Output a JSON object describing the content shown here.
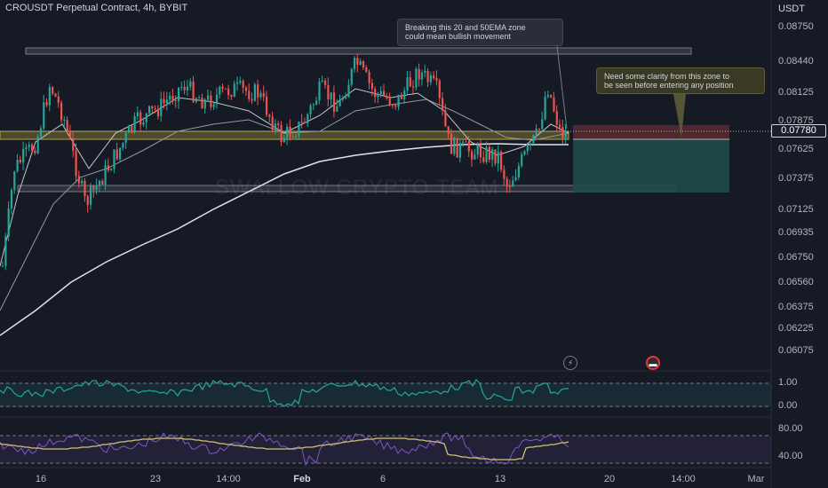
{
  "header": {
    "symbol_title": "CROUSDT Perpetual Contract, 4h, BYBIT",
    "currency": "USDT"
  },
  "price_axis": {
    "labels": [
      "0.08750",
      "0.08440",
      "0.08125",
      "0.07875",
      "0.07625",
      "0.07375",
      "0.07125",
      "0.06935",
      "0.06750",
      "0.06560",
      "0.06375",
      "0.06225",
      "0.06075"
    ],
    "last_price": "0.07780"
  },
  "time_axis": {
    "labels": [
      {
        "text": "16",
        "bold": false
      },
      {
        "text": "23",
        "bold": false
      },
      {
        "text": "14:00",
        "bold": false
      },
      {
        "text": "Feb",
        "bold": true
      },
      {
        "text": "6",
        "bold": false
      },
      {
        "text": "13",
        "bold": false
      },
      {
        "text": "20",
        "bold": false
      },
      {
        "text": "14:00",
        "bold": false
      },
      {
        "text": "Mar",
        "bold": false
      }
    ]
  },
  "annotations": {
    "callout_1": [
      "Breaking this 20 and 50EMA zone",
      "could mean bullish movement"
    ],
    "callout_2": [
      "Need some clarity from this zone to",
      "be seen before entering any position"
    ]
  },
  "watermark": "SWALLOW CRYPTO TEAM",
  "indicator_1": {
    "labels": [
      "1.00",
      "0.00"
    ],
    "color": "#26a69a"
  },
  "indicator_2": {
    "labels": [
      "80.00",
      "40.00"
    ],
    "color": "#7e57c2"
  },
  "events": {
    "lightning_icon": "lightning-icon",
    "flag_icon": "flag-icon"
  },
  "colors": {
    "up_candle": "#26a69a",
    "down_candle": "#ef5350",
    "zone_yellow": "#b5a642",
    "long_target": "#1f4d4a",
    "stop_zone": "#5a2a30"
  }
}
